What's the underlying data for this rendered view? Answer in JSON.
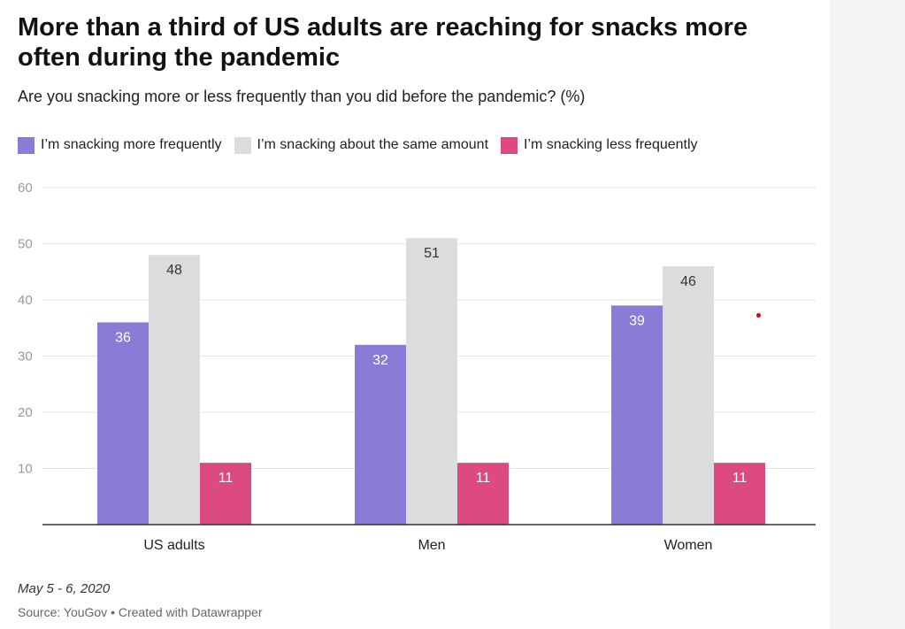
{
  "title": "More than a third of US adults are reaching for snacks more often during the pandemic",
  "subtitle": "Are you snacking more or less frequently than you did before the pandemic? (%)",
  "notes": "May 5 - 6, 2020",
  "source": "Source: YouGov • Created with Datawrapper",
  "chart_data": {
    "type": "bar",
    "categories": [
      "US adults",
      "Men",
      "Women"
    ],
    "series": [
      {
        "name": "I’m snacking more frequently",
        "color": "#8a7bd6",
        "values": [
          36,
          32,
          39
        ]
      },
      {
        "name": "I’m snacking about the same amount",
        "color": "#dcdcdc",
        "values": [
          48,
          51,
          46
        ]
      },
      {
        "name": "I’m snacking less frequently",
        "color": "#dd4a82",
        "values": [
          11,
          11,
          11
        ]
      }
    ],
    "ylim": [
      0,
      60
    ],
    "yticks": [
      10,
      20,
      30,
      40,
      50,
      60
    ],
    "grid": true,
    "legend_position": "top-left"
  }
}
